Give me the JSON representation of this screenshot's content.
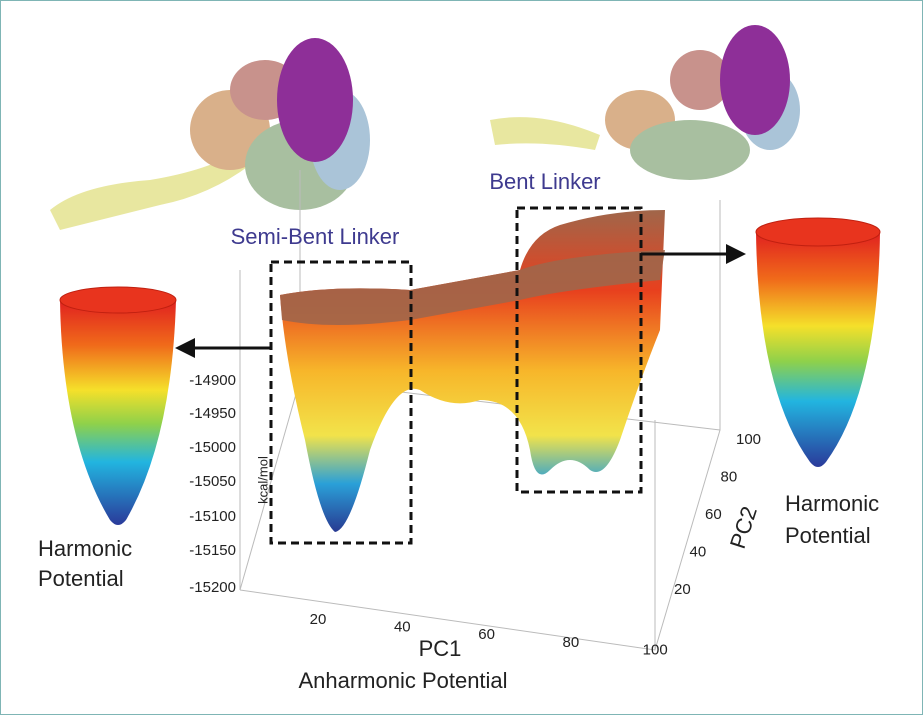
{
  "labels": {
    "semi_bent_linker": "Semi-Bent Linker",
    "bent_linker": "Bent Linker"
  },
  "left_potential": [
    "Harmonic",
    "Potential"
  ],
  "right_potential": [
    "Harmonic",
    "Potential"
  ],
  "axes": {
    "z_label": "kcal/mol",
    "z_ticks": [
      -14900,
      -14950,
      -15000,
      -15050,
      -15100,
      -15150,
      -15200
    ],
    "x_label": "PC1",
    "x_ticks": [
      20,
      40,
      60,
      80,
      100
    ],
    "y_label": "PC2",
    "y_ticks": [
      100,
      80,
      60,
      40,
      20
    ]
  },
  "caption": "Anharmonic Potential"
}
